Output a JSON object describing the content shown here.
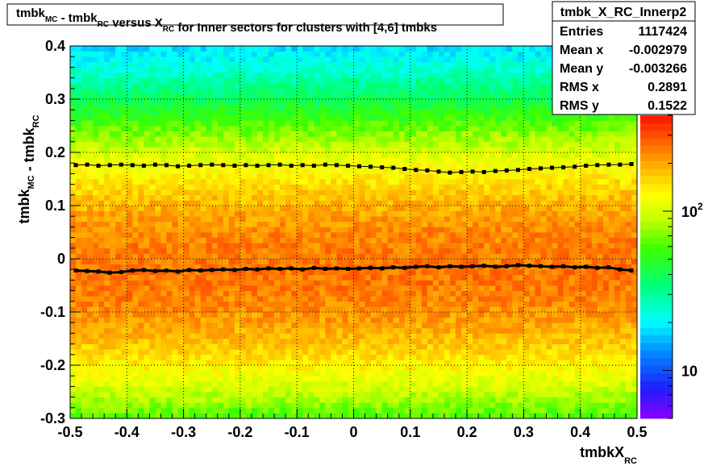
{
  "chart_data": {
    "type": "heatmap",
    "title": {
      "parts": [
        {
          "t": "tmbk",
          "sub": "MC"
        },
        {
          "t": " - tmbk",
          "sub": "RC"
        },
        {
          "t": " versus X",
          "sub": "RC"
        },
        {
          "t": " for Inner sectors for clusters with [4,6] tmbks"
        }
      ]
    },
    "xlabel": {
      "main": "tmbkX",
      "sub": "RC"
    },
    "ylabel": {
      "parts": [
        {
          "t": "tmbk",
          "sub": "MC"
        },
        {
          "t": " - tmbk",
          "sub": "RC"
        }
      ]
    },
    "xlim": [
      -0.5,
      0.5
    ],
    "ylim": [
      -0.3,
      0.4
    ],
    "x_ticks": [
      "-0.5",
      "-0.4",
      "-0.3",
      "-0.2",
      "-0.1",
      "0",
      "0.1",
      "0.2",
      "0.3",
      "0.4",
      "0.5"
    ],
    "x_tick_values": [
      -0.5,
      -0.4,
      -0.3,
      -0.2,
      -0.1,
      0,
      0.1,
      0.2,
      0.3,
      0.4,
      0.5
    ],
    "y_ticks": [
      "-0.3",
      "-0.2",
      "-0.1",
      "0",
      "0.1",
      "0.2",
      "0.3",
      "0.4"
    ],
    "y_tick_values": [
      -0.3,
      -0.2,
      -0.1,
      0,
      0.1,
      0.2,
      0.3,
      0.4
    ],
    "grid": true,
    "stats_box": {
      "name": "tmbk_X_RC_Innerp2",
      "rows": [
        {
          "label": "Entries",
          "value": "1117424"
        },
        {
          "label": "Mean x",
          "value": "-0.002979"
        },
        {
          "label": "Mean y",
          "value": "-0.003266"
        },
        {
          "label": "RMS x",
          "value": "0.2891"
        },
        {
          "label": "RMS y",
          "value": "0.1522"
        }
      ]
    },
    "color_scale": {
      "log": true,
      "min": 5,
      "max": 400,
      "labels": [
        {
          "value": 10,
          "base": "10",
          "exp": ""
        },
        {
          "value": 100,
          "base": "10",
          "exp": "2"
        }
      ]
    },
    "bins": {
      "nx": 100,
      "ny": 70
    },
    "mean_profile": {
      "x": [
        -0.49,
        -0.47,
        -0.45,
        -0.43,
        -0.41,
        -0.39,
        -0.37,
        -0.35,
        -0.33,
        -0.31,
        -0.29,
        -0.27,
        -0.25,
        -0.23,
        -0.21,
        -0.19,
        -0.17,
        -0.15,
        -0.13,
        -0.11,
        -0.09,
        -0.07,
        -0.05,
        -0.03,
        -0.01,
        0.01,
        0.03,
        0.05,
        0.07,
        0.09,
        0.11,
        0.13,
        0.15,
        0.17,
        0.19,
        0.21,
        0.23,
        0.25,
        0.27,
        0.29,
        0.31,
        0.33,
        0.35,
        0.37,
        0.39,
        0.41,
        0.43,
        0.45,
        0.47,
        0.49
      ],
      "y": [
        -0.022,
        -0.023,
        -0.024,
        -0.026,
        -0.025,
        -0.022,
        -0.021,
        -0.023,
        -0.022,
        -0.024,
        -0.021,
        -0.022,
        -0.021,
        -0.02,
        -0.021,
        -0.019,
        -0.02,
        -0.018,
        -0.019,
        -0.018,
        -0.02,
        -0.017,
        -0.019,
        -0.018,
        -0.019,
        -0.018,
        -0.017,
        -0.018,
        -0.016,
        -0.017,
        -0.015,
        -0.014,
        -0.016,
        -0.014,
        -0.015,
        -0.014,
        -0.013,
        -0.015,
        -0.014,
        -0.012,
        -0.013,
        -0.014,
        -0.015,
        -0.014,
        -0.016,
        -0.015,
        -0.017,
        -0.016,
        -0.02,
        -0.022
      ]
    },
    "sigma_profile": {
      "x": [
        -0.49,
        -0.47,
        -0.45,
        -0.43,
        -0.41,
        -0.39,
        -0.37,
        -0.35,
        -0.33,
        -0.31,
        -0.29,
        -0.27,
        -0.25,
        -0.23,
        -0.21,
        -0.19,
        -0.17,
        -0.15,
        -0.13,
        -0.11,
        -0.09,
        -0.07,
        -0.05,
        -0.03,
        -0.01,
        0.01,
        0.03,
        0.05,
        0.07,
        0.09,
        0.11,
        0.13,
        0.15,
        0.17,
        0.19,
        0.21,
        0.23,
        0.25,
        0.27,
        0.29,
        0.31,
        0.33,
        0.35,
        0.37,
        0.39,
        0.41,
        0.43,
        0.45,
        0.47,
        0.49
      ],
      "y": [
        0.176,
        0.177,
        0.175,
        0.176,
        0.177,
        0.176,
        0.175,
        0.177,
        0.176,
        0.174,
        0.175,
        0.176,
        0.177,
        0.176,
        0.175,
        0.176,
        0.175,
        0.176,
        0.177,
        0.175,
        0.176,
        0.175,
        0.177,
        0.176,
        0.175,
        0.174,
        0.173,
        0.172,
        0.171,
        0.169,
        0.167,
        0.166,
        0.164,
        0.162,
        0.163,
        0.164,
        0.163,
        0.165,
        0.166,
        0.167,
        0.169,
        0.17,
        0.171,
        0.172,
        0.173,
        0.175,
        0.176,
        0.177,
        0.177,
        0.178
      ]
    }
  }
}
